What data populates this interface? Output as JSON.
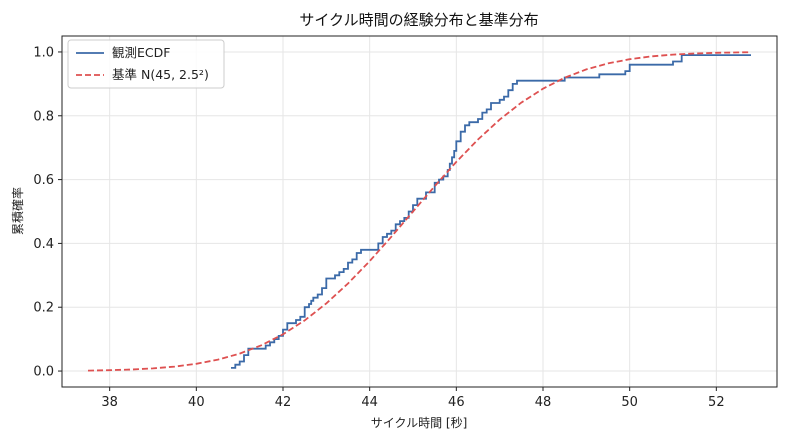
{
  "chart_data": {
    "type": "line",
    "title": "サイクル時間の経験分布と基準分布",
    "xlabel": "サイクル時間 [秒]",
    "ylabel": "累積確率",
    "xlim": [
      36.9,
      53.4
    ],
    "ylim": [
      -0.05,
      1.05
    ],
    "xticks": [
      "38",
      "40",
      "42",
      "44",
      "46",
      "48",
      "50",
      "52"
    ],
    "yticks": [
      "0.0",
      "0.2",
      "0.4",
      "0.6",
      "0.8",
      "1.0"
    ],
    "grid": true,
    "legend_position": "top-left",
    "series": [
      {
        "name": "観測ECDF",
        "style": "step",
        "color": "#3b6aa8",
        "x": [
          40.8,
          40.9,
          41.0,
          41.1,
          41.2,
          41.6,
          41.7,
          41.8,
          41.9,
          42.0,
          42.1,
          42.3,
          42.4,
          42.5,
          42.6,
          42.65,
          42.7,
          42.8,
          42.9,
          43.0,
          43.2,
          43.3,
          43.4,
          43.5,
          43.6,
          43.7,
          43.8,
          44.2,
          44.3,
          44.4,
          44.5,
          44.6,
          44.7,
          44.8,
          44.9,
          45.0,
          45.1,
          45.3,
          45.5,
          45.6,
          45.7,
          45.8,
          45.85,
          45.9,
          45.95,
          46.0,
          46.1,
          46.2,
          46.3,
          46.5,
          46.6,
          46.7,
          46.8,
          47.0,
          47.1,
          47.2,
          47.3,
          47.4,
          47.8,
          48.5,
          49.3,
          49.9,
          50.0,
          51.0,
          51.2,
          52.8
        ],
        "y": [
          0.01,
          0.02,
          0.03,
          0.05,
          0.07,
          0.08,
          0.09,
          0.1,
          0.11,
          0.13,
          0.15,
          0.16,
          0.17,
          0.2,
          0.21,
          0.22,
          0.23,
          0.24,
          0.26,
          0.29,
          0.3,
          0.31,
          0.32,
          0.34,
          0.35,
          0.37,
          0.38,
          0.4,
          0.42,
          0.43,
          0.44,
          0.46,
          0.47,
          0.48,
          0.5,
          0.52,
          0.54,
          0.56,
          0.59,
          0.6,
          0.61,
          0.63,
          0.65,
          0.67,
          0.69,
          0.72,
          0.75,
          0.77,
          0.78,
          0.79,
          0.81,
          0.82,
          0.84,
          0.85,
          0.86,
          0.88,
          0.9,
          0.91,
          0.91,
          0.92,
          0.93,
          0.94,
          0.96,
          0.97,
          0.99,
          0.99
        ]
      },
      {
        "name": "基準 N(45, 2.5²)",
        "style": "dashed",
        "color": "#de5151",
        "x": [
          37.5,
          38.0,
          38.5,
          39.0,
          39.5,
          40.0,
          40.5,
          41.0,
          41.5,
          42.0,
          42.5,
          43.0,
          43.5,
          44.0,
          44.5,
          45.0,
          45.5,
          46.0,
          46.5,
          47.0,
          47.5,
          48.0,
          48.5,
          49.0,
          49.5,
          50.0,
          50.5,
          51.0,
          51.5,
          52.0,
          52.5,
          52.8
        ],
        "y": [
          0.0013,
          0.0026,
          0.0047,
          0.0082,
          0.0139,
          0.0228,
          0.0359,
          0.0548,
          0.0808,
          0.1151,
          0.1587,
          0.2119,
          0.2743,
          0.3446,
          0.4207,
          0.5,
          0.5793,
          0.6554,
          0.7257,
          0.7881,
          0.8413,
          0.8849,
          0.9192,
          0.9452,
          0.9641,
          0.9772,
          0.9861,
          0.9918,
          0.9953,
          0.9974,
          0.9987,
          0.9991
        ]
      }
    ]
  }
}
